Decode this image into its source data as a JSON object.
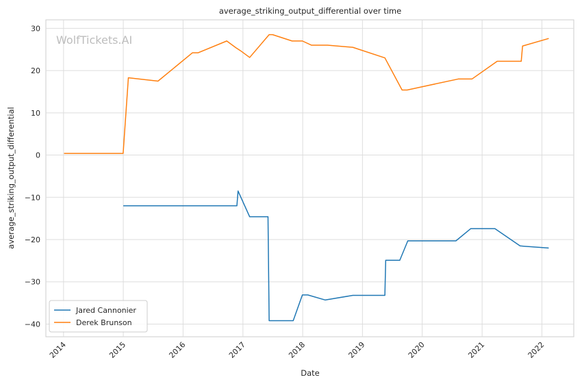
{
  "chart_data": {
    "type": "line",
    "title": "average_striking_output_differential over time",
    "xlabel": "Date",
    "ylabel": "average_striking_output_differential",
    "watermark": "WolfTickets.AI",
    "grid": true,
    "legend_position": "lower-left",
    "xlim": [
      "2013-09-15",
      "2022-07-15"
    ],
    "ylim": [
      -43,
      32
    ],
    "x_ticks": [
      "2014",
      "2015",
      "2016",
      "2017",
      "2018",
      "2019",
      "2020",
      "2021",
      "2022"
    ],
    "y_ticks": [
      30,
      20,
      10,
      0,
      -10,
      -20,
      -30,
      -40
    ],
    "series": [
      {
        "name": "Jared Cannonier",
        "color": "#1f77b4",
        "points": [
          [
            "2015-01-01",
            -12.0
          ],
          [
            "2016-11-25",
            -12.0
          ],
          [
            "2016-12-02",
            -8.5
          ],
          [
            "2017-02-11",
            -14.6
          ],
          [
            "2017-06-03",
            -14.6
          ],
          [
            "2017-06-10",
            -39.2
          ],
          [
            "2017-11-04",
            -39.2
          ],
          [
            "2017-12-30",
            -33.1
          ],
          [
            "2018-02-01",
            -33.1
          ],
          [
            "2018-05-19",
            -34.3
          ],
          [
            "2018-11-03",
            -33.2
          ],
          [
            "2019-05-18",
            -33.2
          ],
          [
            "2019-05-23",
            -24.9
          ],
          [
            "2019-08-17",
            -24.9
          ],
          [
            "2019-10-05",
            -20.3
          ],
          [
            "2020-07-25",
            -20.3
          ],
          [
            "2020-10-24",
            -17.4
          ],
          [
            "2021-03-20",
            -17.4
          ],
          [
            "2021-08-21",
            -21.5
          ],
          [
            "2022-02-12",
            -22.0
          ]
        ]
      },
      {
        "name": "Derek Brunson",
        "color": "#ff7f0e",
        "points": [
          [
            "2014-01-04",
            0.4
          ],
          [
            "2014-12-31",
            0.4
          ],
          [
            "2015-02-01",
            18.3
          ],
          [
            "2015-08-01",
            17.5
          ],
          [
            "2016-02-27",
            24.2
          ],
          [
            "2016-04-01",
            24.2
          ],
          [
            "2016-09-24",
            27.0
          ],
          [
            "2016-11-19",
            25.4
          ],
          [
            "2016-12-17",
            24.7
          ],
          [
            "2017-02-11",
            23.1
          ],
          [
            "2017-06-10",
            28.5
          ],
          [
            "2017-07-01",
            28.5
          ],
          [
            "2017-10-28",
            27.0
          ],
          [
            "2017-12-30",
            27.0
          ],
          [
            "2018-02-24",
            26.0
          ],
          [
            "2018-06-01",
            26.0
          ],
          [
            "2018-11-03",
            25.5
          ],
          [
            "2019-05-18",
            23.0
          ],
          [
            "2019-08-31",
            15.4
          ],
          [
            "2019-10-01",
            15.4
          ],
          [
            "2020-08-08",
            18.0
          ],
          [
            "2020-10-31",
            18.0
          ],
          [
            "2021-04-03",
            22.2
          ],
          [
            "2021-08-28",
            22.2
          ],
          [
            "2021-09-05",
            25.8
          ],
          [
            "2022-02-12",
            27.6
          ]
        ]
      }
    ]
  }
}
